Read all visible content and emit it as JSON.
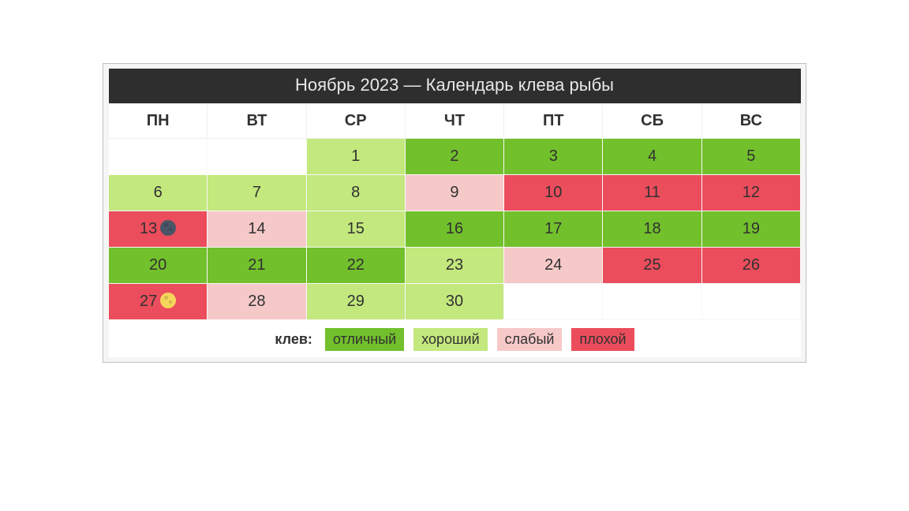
{
  "title": "Ноябрь 2023 — Календарь клева рыбы",
  "weekdays": [
    "ПН",
    "ВТ",
    "СР",
    "ЧТ",
    "ПТ",
    "СБ",
    "ВС"
  ],
  "status_colors": {
    "excellent": "#72c02c",
    "good": "#c3e87d",
    "weak": "#f6c9c9",
    "bad": "#eb4d5c",
    "empty": "#ffffff"
  },
  "legend": {
    "label": "клев:",
    "items": [
      {
        "text": "отличный",
        "status": "excellent"
      },
      {
        "text": "хороший",
        "status": "good"
      },
      {
        "text": "слабый",
        "status": "weak"
      },
      {
        "text": "плохой",
        "status": "bad"
      }
    ]
  },
  "weeks": [
    [
      {
        "day": null,
        "status": "empty"
      },
      {
        "day": null,
        "status": "empty"
      },
      {
        "day": 1,
        "status": "good"
      },
      {
        "day": 2,
        "status": "excellent"
      },
      {
        "day": 3,
        "status": "excellent"
      },
      {
        "day": 4,
        "status": "excellent"
      },
      {
        "day": 5,
        "status": "excellent"
      }
    ],
    [
      {
        "day": 6,
        "status": "good"
      },
      {
        "day": 7,
        "status": "good"
      },
      {
        "day": 8,
        "status": "good"
      },
      {
        "day": 9,
        "status": "weak"
      },
      {
        "day": 10,
        "status": "bad"
      },
      {
        "day": 11,
        "status": "bad"
      },
      {
        "day": 12,
        "status": "bad"
      }
    ],
    [
      {
        "day": 13,
        "status": "bad",
        "moon": "new"
      },
      {
        "day": 14,
        "status": "weak"
      },
      {
        "day": 15,
        "status": "good"
      },
      {
        "day": 16,
        "status": "excellent"
      },
      {
        "day": 17,
        "status": "excellent"
      },
      {
        "day": 18,
        "status": "excellent"
      },
      {
        "day": 19,
        "status": "excellent"
      }
    ],
    [
      {
        "day": 20,
        "status": "excellent"
      },
      {
        "day": 21,
        "status": "excellent"
      },
      {
        "day": 22,
        "status": "excellent"
      },
      {
        "day": 23,
        "status": "good"
      },
      {
        "day": 24,
        "status": "weak"
      },
      {
        "day": 25,
        "status": "bad"
      },
      {
        "day": 26,
        "status": "bad"
      }
    ],
    [
      {
        "day": 27,
        "status": "bad",
        "moon": "full"
      },
      {
        "day": 28,
        "status": "weak"
      },
      {
        "day": 29,
        "status": "good"
      },
      {
        "day": 30,
        "status": "good"
      },
      {
        "day": null,
        "status": "empty"
      },
      {
        "day": null,
        "status": "empty"
      },
      {
        "day": null,
        "status": "empty"
      }
    ]
  ]
}
